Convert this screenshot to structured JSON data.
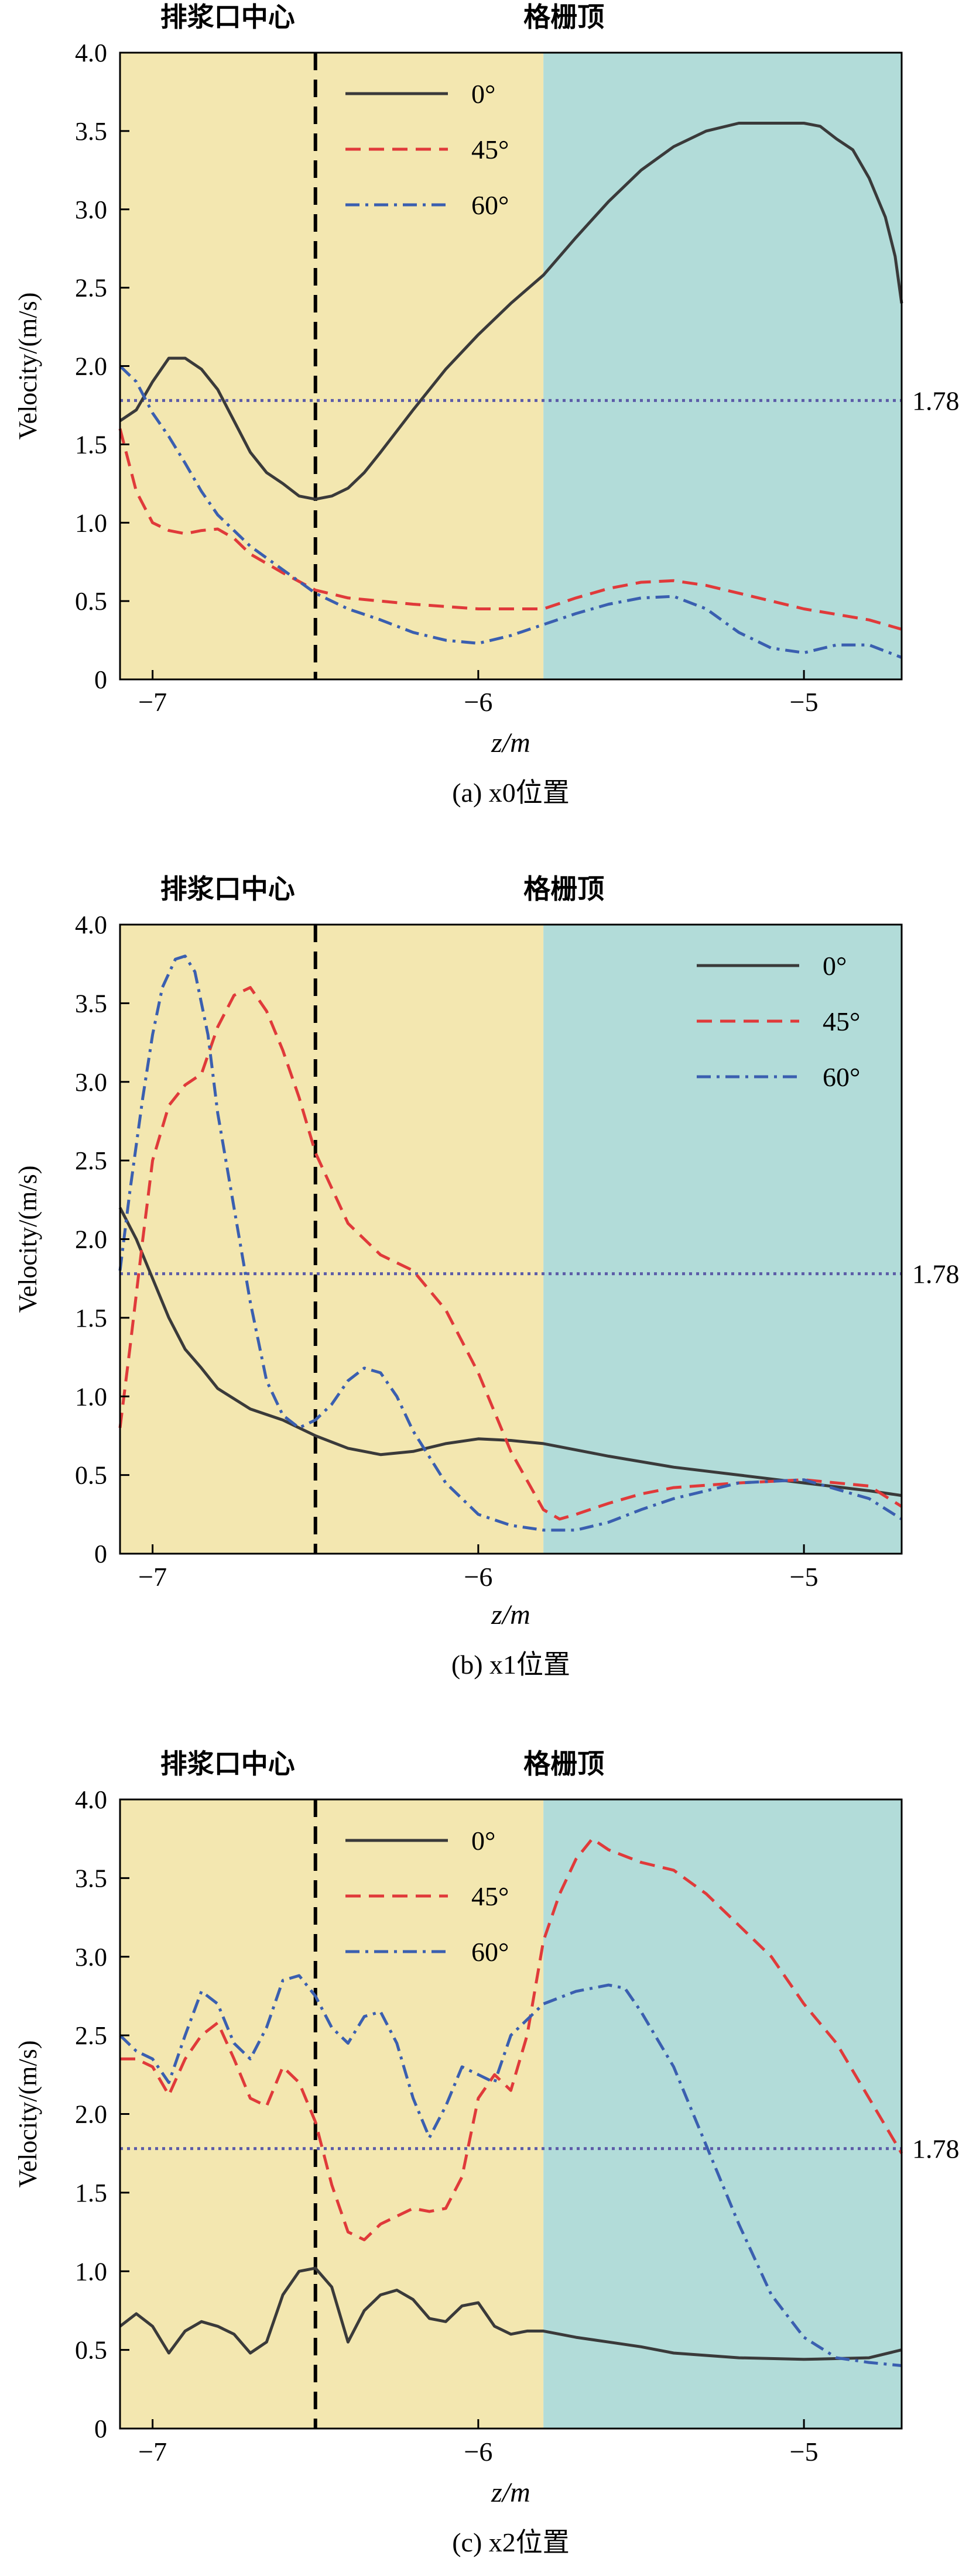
{
  "colors": {
    "zone_left": "#F3E7B0",
    "zone_right": "#B2DCD9",
    "axis": "#000000",
    "reference_line": "#5C5CA8",
    "divider": "#000000"
  },
  "chart_data": [
    {
      "type": "line",
      "caption": "(a) x0位置",
      "xlabel": "z/m",
      "ylabel": "Velocity/(m/s)",
      "xlim": [
        -7.1,
        -4.7
      ],
      "ylim": [
        0,
        4.0
      ],
      "x_ticks": [
        -7,
        -6,
        -5
      ],
      "y_ticks": [
        0,
        0.5,
        1.0,
        1.5,
        2.0,
        2.5,
        3.0,
        3.5,
        4.0
      ],
      "legend_position": "top-left",
      "annotations": {
        "outlet_label": "排浆口中心",
        "outlet_z": -6.5,
        "grid_label": "格栅顶",
        "grid_z": -5.8
      },
      "reference_line": {
        "value": 1.78,
        "label": "1.78"
      },
      "series": [
        {
          "name": "0°",
          "color": "#3a3a3a",
          "dash": "solid",
          "x": [
            -7.1,
            -7.05,
            -7.0,
            -6.95,
            -6.9,
            -6.85,
            -6.8,
            -6.75,
            -6.7,
            -6.65,
            -6.6,
            -6.55,
            -6.5,
            -6.45,
            -6.4,
            -6.35,
            -6.3,
            -6.2,
            -6.1,
            -6.0,
            -5.9,
            -5.8,
            -5.7,
            -5.6,
            -5.5,
            -5.4,
            -5.3,
            -5.2,
            -5.1,
            -5.0,
            -4.95,
            -4.9,
            -4.85,
            -4.8,
            -4.75,
            -4.72,
            -4.7
          ],
          "y": [
            1.65,
            1.72,
            1.9,
            2.05,
            2.05,
            1.98,
            1.85,
            1.65,
            1.45,
            1.32,
            1.25,
            1.17,
            1.15,
            1.17,
            1.22,
            1.32,
            1.45,
            1.72,
            1.98,
            2.2,
            2.4,
            2.58,
            2.82,
            3.05,
            3.25,
            3.4,
            3.5,
            3.55,
            3.55,
            3.55,
            3.53,
            3.45,
            3.38,
            3.2,
            2.95,
            2.7,
            2.4
          ]
        },
        {
          "name": "45°",
          "color": "#e03a3a",
          "dash": "dashed",
          "x": [
            -7.1,
            -7.05,
            -7.0,
            -6.95,
            -6.9,
            -6.85,
            -6.8,
            -6.75,
            -6.7,
            -6.6,
            -6.5,
            -6.4,
            -6.2,
            -6.0,
            -5.8,
            -5.7,
            -5.6,
            -5.5,
            -5.4,
            -5.3,
            -5.2,
            -5.0,
            -4.8,
            -4.7
          ],
          "y": [
            1.6,
            1.2,
            1.0,
            0.95,
            0.93,
            0.95,
            0.96,
            0.9,
            0.8,
            0.68,
            0.57,
            0.52,
            0.48,
            0.45,
            0.45,
            0.52,
            0.58,
            0.62,
            0.63,
            0.6,
            0.55,
            0.45,
            0.38,
            0.32
          ]
        },
        {
          "name": "60°",
          "color": "#3a5fb0",
          "dash": "dashdot",
          "x": [
            -7.1,
            -7.05,
            -7.0,
            -6.95,
            -6.9,
            -6.85,
            -6.8,
            -6.75,
            -6.7,
            -6.6,
            -6.5,
            -6.4,
            -6.3,
            -6.2,
            -6.1,
            -6.0,
            -5.9,
            -5.8,
            -5.7,
            -5.6,
            -5.5,
            -5.4,
            -5.3,
            -5.2,
            -5.1,
            -5.0,
            -4.9,
            -4.8,
            -4.7
          ],
          "y": [
            2.0,
            1.9,
            1.7,
            1.55,
            1.38,
            1.2,
            1.05,
            0.95,
            0.85,
            0.7,
            0.55,
            0.45,
            0.38,
            0.3,
            0.25,
            0.23,
            0.28,
            0.35,
            0.42,
            0.48,
            0.52,
            0.53,
            0.45,
            0.3,
            0.2,
            0.17,
            0.22,
            0.22,
            0.14
          ]
        }
      ]
    },
    {
      "type": "line",
      "caption": "(b) x1位置",
      "xlabel": "z/m",
      "ylabel": "Velocity/(m/s)",
      "xlim": [
        -7.1,
        -4.7
      ],
      "ylim": [
        0,
        4.0
      ],
      "x_ticks": [
        -7,
        -6,
        -5
      ],
      "y_ticks": [
        0,
        0.5,
        1.0,
        1.5,
        2.0,
        2.5,
        3.0,
        3.5,
        4.0
      ],
      "legend_position": "top-right",
      "annotations": {
        "outlet_label": "排浆口中心",
        "outlet_z": -6.5,
        "grid_label": "格栅顶",
        "grid_z": -5.8
      },
      "reference_line": {
        "value": 1.78,
        "label": "1.78"
      },
      "series": [
        {
          "name": "0°",
          "color": "#3a3a3a",
          "dash": "solid",
          "x": [
            -7.1,
            -7.05,
            -7.0,
            -6.95,
            -6.9,
            -6.85,
            -6.8,
            -6.7,
            -6.6,
            -6.5,
            -6.4,
            -6.3,
            -6.2,
            -6.1,
            -6.0,
            -5.9,
            -5.8,
            -5.6,
            -5.4,
            -5.2,
            -5.0,
            -4.8,
            -4.7
          ],
          "y": [
            2.2,
            2.0,
            1.75,
            1.5,
            1.3,
            1.18,
            1.05,
            0.92,
            0.85,
            0.75,
            0.67,
            0.63,
            0.65,
            0.7,
            0.73,
            0.72,
            0.7,
            0.62,
            0.55,
            0.5,
            0.45,
            0.4,
            0.37
          ]
        },
        {
          "name": "45°",
          "color": "#e03a3a",
          "dash": "dashed",
          "x": [
            -7.1,
            -7.07,
            -7.03,
            -7.0,
            -6.95,
            -6.9,
            -6.85,
            -6.8,
            -6.75,
            -6.7,
            -6.65,
            -6.6,
            -6.55,
            -6.5,
            -6.4,
            -6.3,
            -6.2,
            -6.1,
            -6.0,
            -5.9,
            -5.8,
            -5.75,
            -5.7,
            -5.6,
            -5.5,
            -5.4,
            -5.2,
            -5.0,
            -4.8,
            -4.7
          ],
          "y": [
            0.8,
            1.3,
            2.0,
            2.5,
            2.85,
            2.98,
            3.05,
            3.35,
            3.55,
            3.6,
            3.45,
            3.2,
            2.9,
            2.55,
            2.1,
            1.9,
            1.8,
            1.55,
            1.15,
            0.65,
            0.28,
            0.22,
            0.25,
            0.32,
            0.38,
            0.42,
            0.45,
            0.47,
            0.43,
            0.3
          ]
        },
        {
          "name": "60°",
          "color": "#3a5fb0",
          "dash": "dashdot",
          "x": [
            -7.1,
            -7.07,
            -7.03,
            -7.0,
            -6.97,
            -6.93,
            -6.9,
            -6.87,
            -6.83,
            -6.8,
            -6.75,
            -6.7,
            -6.65,
            -6.6,
            -6.55,
            -6.5,
            -6.45,
            -6.4,
            -6.35,
            -6.3,
            -6.25,
            -6.2,
            -6.1,
            -6.0,
            -5.9,
            -5.8,
            -5.7,
            -5.6,
            -5.5,
            -5.4,
            -5.2,
            -5.0,
            -4.8,
            -4.7
          ],
          "y": [
            1.8,
            2.3,
            2.9,
            3.3,
            3.6,
            3.78,
            3.8,
            3.7,
            3.3,
            2.8,
            2.2,
            1.6,
            1.1,
            0.88,
            0.8,
            0.85,
            0.95,
            1.1,
            1.18,
            1.15,
            1.0,
            0.78,
            0.45,
            0.25,
            0.18,
            0.15,
            0.15,
            0.2,
            0.28,
            0.35,
            0.45,
            0.47,
            0.35,
            0.22
          ]
        }
      ]
    },
    {
      "type": "line",
      "caption": "(c) x2位置",
      "xlabel": "z/m",
      "ylabel": "Velocity/(m/s)",
      "xlim": [
        -7.1,
        -4.7
      ],
      "ylim": [
        0,
        4.0
      ],
      "x_ticks": [
        -7,
        -6,
        -5
      ],
      "y_ticks": [
        0,
        0.5,
        1.0,
        1.5,
        2.0,
        2.5,
        3.0,
        3.5,
        4.0
      ],
      "legend_position": "top-left",
      "annotations": {
        "outlet_label": "排浆口中心",
        "outlet_z": -6.5,
        "grid_label": "格栅顶",
        "grid_z": -5.8
      },
      "reference_line": {
        "value": 1.78,
        "label": "1.78"
      },
      "series": [
        {
          "name": "0°",
          "color": "#3a3a3a",
          "dash": "solid",
          "x": [
            -7.1,
            -7.05,
            -7.0,
            -6.95,
            -6.9,
            -6.85,
            -6.8,
            -6.75,
            -6.7,
            -6.65,
            -6.6,
            -6.55,
            -6.5,
            -6.45,
            -6.4,
            -6.35,
            -6.3,
            -6.25,
            -6.2,
            -6.15,
            -6.1,
            -6.05,
            -6.0,
            -5.95,
            -5.9,
            -5.85,
            -5.8,
            -5.7,
            -5.6,
            -5.5,
            -5.4,
            -5.2,
            -5.0,
            -4.8,
            -4.7
          ],
          "y": [
            0.65,
            0.73,
            0.65,
            0.48,
            0.62,
            0.68,
            0.65,
            0.6,
            0.48,
            0.55,
            0.85,
            1.0,
            1.02,
            0.9,
            0.55,
            0.75,
            0.85,
            0.88,
            0.82,
            0.7,
            0.68,
            0.78,
            0.8,
            0.65,
            0.6,
            0.62,
            0.62,
            0.58,
            0.55,
            0.52,
            0.48,
            0.45,
            0.44,
            0.45,
            0.5
          ]
        },
        {
          "name": "45°",
          "color": "#e03a3a",
          "dash": "dashed",
          "x": [
            -7.1,
            -7.05,
            -7.0,
            -6.95,
            -6.9,
            -6.85,
            -6.8,
            -6.75,
            -6.7,
            -6.65,
            -6.6,
            -6.55,
            -6.5,
            -6.45,
            -6.4,
            -6.35,
            -6.3,
            -6.25,
            -6.2,
            -6.15,
            -6.1,
            -6.05,
            -6.0,
            -5.95,
            -5.9,
            -5.85,
            -5.8,
            -5.75,
            -5.7,
            -5.65,
            -5.6,
            -5.5,
            -5.4,
            -5.3,
            -5.2,
            -5.1,
            -5.0,
            -4.9,
            -4.8,
            -4.7
          ],
          "y": [
            2.35,
            2.35,
            2.3,
            2.12,
            2.35,
            2.5,
            2.58,
            2.35,
            2.1,
            2.05,
            2.3,
            2.2,
            1.95,
            1.55,
            1.25,
            1.2,
            1.3,
            1.35,
            1.4,
            1.38,
            1.4,
            1.6,
            2.1,
            2.25,
            2.15,
            2.5,
            3.1,
            3.4,
            3.62,
            3.75,
            3.68,
            3.6,
            3.55,
            3.4,
            3.2,
            3.0,
            2.7,
            2.45,
            2.1,
            1.75
          ]
        },
        {
          "name": "60°",
          "color": "#3a5fb0",
          "dash": "dashdot",
          "x": [
            -7.1,
            -7.05,
            -7.0,
            -6.95,
            -6.9,
            -6.85,
            -6.8,
            -6.75,
            -6.7,
            -6.65,
            -6.6,
            -6.55,
            -6.5,
            -6.45,
            -6.4,
            -6.35,
            -6.3,
            -6.25,
            -6.2,
            -6.15,
            -6.1,
            -6.05,
            -6.0,
            -5.95,
            -5.9,
            -5.8,
            -5.7,
            -5.6,
            -5.55,
            -5.5,
            -5.4,
            -5.3,
            -5.2,
            -5.1,
            -5.0,
            -4.9,
            -4.8,
            -4.7
          ],
          "y": [
            2.5,
            2.4,
            2.35,
            2.2,
            2.5,
            2.78,
            2.7,
            2.45,
            2.35,
            2.55,
            2.85,
            2.88,
            2.75,
            2.55,
            2.45,
            2.62,
            2.65,
            2.45,
            2.1,
            1.85,
            2.05,
            2.3,
            2.25,
            2.2,
            2.5,
            2.7,
            2.78,
            2.82,
            2.8,
            2.65,
            2.3,
            1.8,
            1.3,
            0.85,
            0.58,
            0.45,
            0.42,
            0.4
          ]
        }
      ]
    }
  ]
}
